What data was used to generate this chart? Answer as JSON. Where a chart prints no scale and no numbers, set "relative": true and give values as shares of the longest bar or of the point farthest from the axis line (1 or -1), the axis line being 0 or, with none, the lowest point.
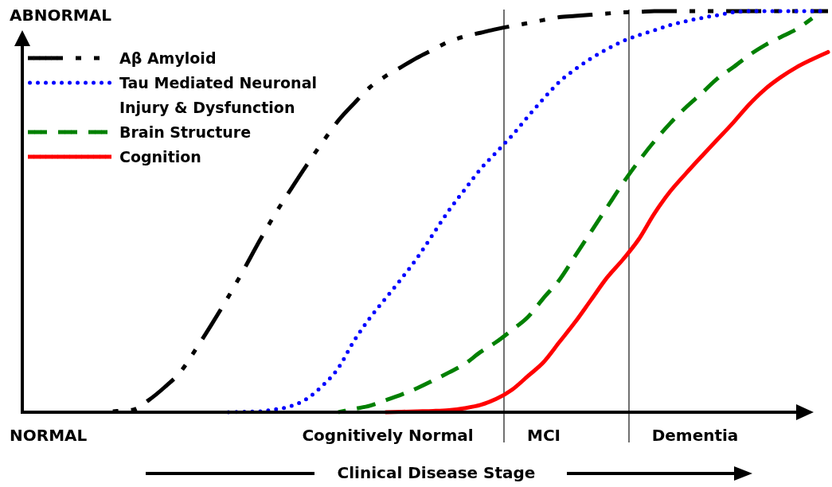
{
  "chart_data": {
    "type": "line",
    "relative": true,
    "xlabel": "Clinical Disease Stage",
    "categories": [
      null,
      null,
      null,
      null,
      null,
      null,
      null,
      null,
      null,
      null,
      null,
      null,
      null,
      null,
      null,
      null,
      null,
      null,
      null,
      null,
      null,
      null,
      null,
      null,
      null,
      null,
      null,
      null,
      null,
      null,
      null,
      null,
      null,
      null,
      null,
      null,
      null,
      null,
      null,
      null,
      null,
      null,
      null,
      null,
      null,
      null,
      null,
      null,
      null,
      null,
      null,
      null
    ],
    "annotations": [
      "ABNORMAL",
      "NORMAL",
      "Cognitively Normal",
      "MCI",
      "Dementia"
    ],
    "grid": false,
    "legend": "top left",
    "series": [
      {
        "name": "Aβ Amyloid",
        "color": "#000000",
        "line_style": "dashdot",
        "values": [
          null,
          null,
          null,
          null,
          null,
          0,
          0.003,
          0.006,
          0.03,
          0.062,
          0.1,
          0.158,
          0.22,
          0.285,
          0.354,
          0.426,
          0.494,
          0.556,
          0.616,
          0.673,
          0.727,
          0.77,
          0.81,
          0.838,
          0.861,
          0.884,
          0.904,
          0.924,
          0.937,
          0.946,
          0.955,
          0.963,
          0.97,
          0.978,
          0.985,
          0.988,
          0.991,
          0.994,
          0.997,
          0.998,
          1,
          1,
          1,
          1,
          1,
          1,
          1,
          1,
          1,
          1,
          1,
          1
        ]
      },
      {
        "name": "Tau Mediated Neuronal Injury & Dysfunction",
        "color": "#0000ff",
        "line_style": "dotted",
        "values": [
          null,
          null,
          null,
          null,
          null,
          null,
          null,
          null,
          null,
          null,
          null,
          null,
          null,
          0,
          0.001,
          0.002,
          0.007,
          0.015,
          0.033,
          0.066,
          0.11,
          0.178,
          0.235,
          0.284,
          0.333,
          0.385,
          0.444,
          0.503,
          0.555,
          0.606,
          0.648,
          0.69,
          0.737,
          0.782,
          0.824,
          0.855,
          0.882,
          0.905,
          0.925,
          0.94,
          0.952,
          0.965,
          0.975,
          0.983,
          0.99,
          0.997,
          1,
          1,
          1,
          1,
          1,
          1
        ]
      },
      {
        "name": "Brain Structure",
        "color": "#008000",
        "line_style": "dashed",
        "values": [
          null,
          null,
          null,
          null,
          null,
          null,
          null,
          null,
          null,
          null,
          null,
          null,
          null,
          null,
          null,
          null,
          null,
          null,
          null,
          null,
          0,
          0.008,
          0.016,
          0.03,
          0.044,
          0.06,
          0.079,
          0.099,
          0.12,
          0.15,
          0.175,
          0.205,
          0.237,
          0.285,
          0.33,
          0.39,
          0.45,
          0.51,
          0.57,
          0.625,
          0.675,
          0.72,
          0.76,
          0.795,
          0.832,
          0.86,
          0.89,
          0.915,
          0.935,
          0.955,
          0.982,
          null
        ]
      },
      {
        "name": "Cognition",
        "color": "#ff0000",
        "line_style": "solid",
        "values": [
          null,
          null,
          null,
          null,
          null,
          null,
          null,
          null,
          null,
          null,
          null,
          null,
          null,
          null,
          null,
          null,
          null,
          null,
          null,
          null,
          null,
          null,
          null,
          0,
          0.001,
          0.002,
          0.003,
          0.005,
          0.01,
          0.018,
          0.033,
          0.056,
          0.09,
          0.125,
          0.175,
          0.225,
          0.28,
          0.335,
          0.38,
          0.43,
          0.495,
          0.55,
          0.595,
          0.638,
          0.68,
          0.722,
          0.767,
          0.805,
          0.835,
          0.86,
          0.88,
          0.898
        ]
      }
    ]
  }
}
